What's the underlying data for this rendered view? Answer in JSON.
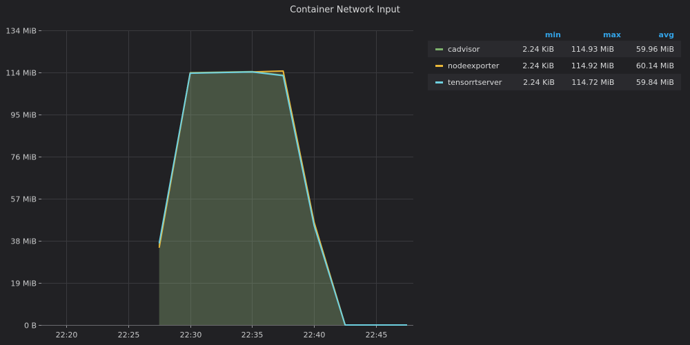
{
  "panel": {
    "title": "Container Network Input"
  },
  "legend": {
    "headers": {
      "min": "min",
      "max": "max",
      "avg": "avg"
    }
  },
  "chart_data": {
    "type": "area",
    "title": "Container Network Input",
    "x_ticks": [
      "22:20",
      "22:25",
      "22:30",
      "22:35",
      "22:40",
      "22:45"
    ],
    "x_tick_minutes": [
      20,
      25,
      30,
      35,
      40,
      45
    ],
    "y_ticks": [
      "0 B",
      "19 MiB",
      "38 MiB",
      "57 MiB",
      "76 MiB",
      "95 MiB",
      "114 MiB",
      "134 MiB"
    ],
    "y_tick_values": [
      0,
      19.07,
      38.15,
      57.22,
      76.29,
      95.37,
      114.44,
      133.51
    ],
    "xlim": [
      18,
      48
    ],
    "ylim": [
      0,
      133.51
    ],
    "y_unit": "MiB",
    "grid": true,
    "legend_position": "right",
    "x_minutes": [
      27.5,
      30,
      35,
      37.5,
      40,
      42.5,
      47.5
    ],
    "series": [
      {
        "name": "cadvisor",
        "color": "#7eb26d",
        "values": [
          36,
          114.3,
          114.8,
          113.2,
          45.8,
          0,
          0
        ],
        "min": "2.24 KiB",
        "max": "114.93 MiB",
        "avg": "59.96 MiB"
      },
      {
        "name": "nodeexporter",
        "color": "#eab839",
        "values": [
          35,
          114.2,
          114.7,
          115.1,
          46.5,
          0,
          0
        ],
        "min": "2.24 KiB",
        "max": "114.92 MiB",
        "avg": "60.14 MiB"
      },
      {
        "name": "tensorrtserver",
        "color": "#6ed0e0",
        "values": [
          37,
          114.1,
          114.7,
          113.0,
          45.0,
          0,
          0
        ],
        "min": "2.24 KiB",
        "max": "114.72 MiB",
        "avg": "59.84 MiB"
      }
    ]
  }
}
